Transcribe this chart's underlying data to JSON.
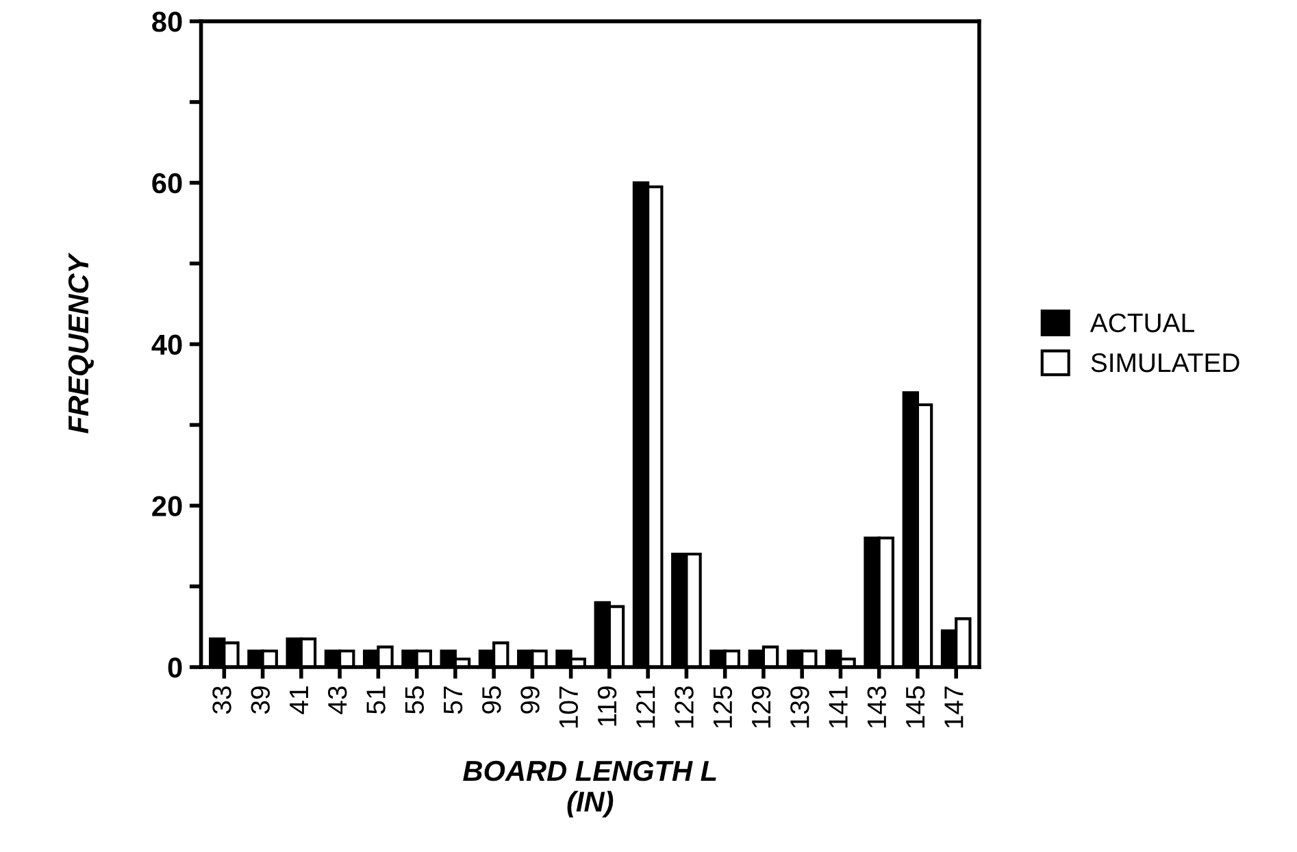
{
  "chart_data": {
    "type": "bar",
    "xlabel": "BOARD LENGTH L\n(IN)",
    "ylabel": "FREQUENCY",
    "categories": [
      "33",
      "39",
      "41",
      "43",
      "51",
      "55",
      "57",
      "95",
      "99",
      "107",
      "119",
      "121",
      "123",
      "125",
      "129",
      "139",
      "141",
      "143",
      "145",
      "147"
    ],
    "series": [
      {
        "name": "ACTUAL",
        "color": "#000000",
        "values": [
          3.5,
          2,
          3.5,
          2,
          2,
          2,
          2,
          2,
          2,
          2,
          8,
          60,
          14,
          2,
          2,
          2,
          2,
          16,
          34,
          4.5
        ]
      },
      {
        "name": "SIMULATED",
        "color": "#ffffff",
        "values": [
          3,
          2,
          3.5,
          2,
          2.5,
          2,
          1,
          3,
          2,
          1,
          7.5,
          59.5,
          14,
          2,
          2.5,
          2,
          1,
          16,
          32.5,
          6
        ]
      }
    ],
    "ylim": [
      0,
      80
    ],
    "yticks": [
      0,
      {
        "value": 10,
        "label": null
      },
      20,
      {
        "value": 30,
        "label": null
      },
      40,
      {
        "value": 50,
        "label": null
      },
      60,
      {
        "value": 70,
        "label": null
      },
      80
    ],
    "grid": false,
    "legend": "right"
  }
}
